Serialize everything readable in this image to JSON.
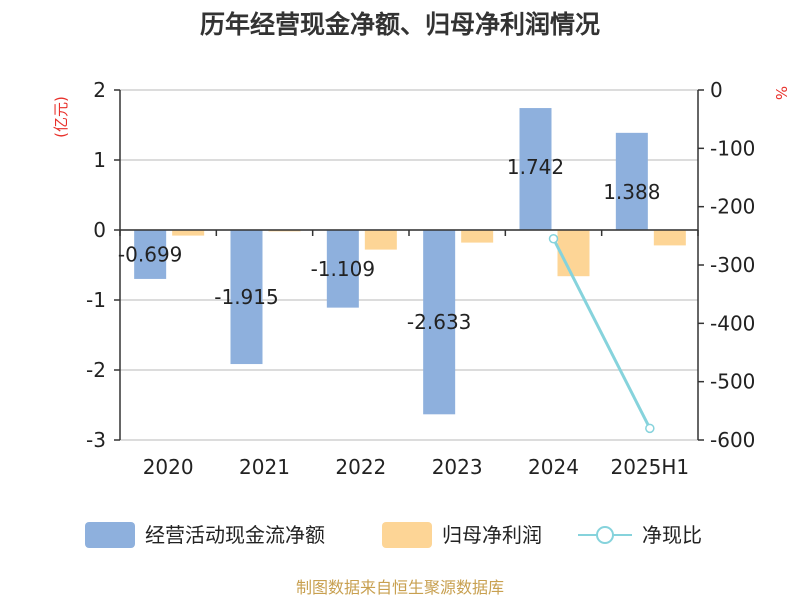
{
  "chart_data": {
    "type": "bar",
    "title": "历年经营现金净额、归母净利润情况",
    "categories": [
      "2020",
      "2021",
      "2022",
      "2023",
      "2024",
      "2025H1"
    ],
    "ylabel_left": "(亿元)",
    "ylabel_right": "%",
    "ylim_left": [
      -3,
      2
    ],
    "ylim_right": [
      -600,
      0
    ],
    "yticks_left": [
      "2",
      "1",
      "0",
      "-1",
      "-2",
      "-3"
    ],
    "yticks_right": [
      "0",
      "-100",
      "-200",
      "-300",
      "-400",
      "-500",
      "-600"
    ],
    "grid": true,
    "legend_position": "bottom",
    "series": [
      {
        "name": "经营活动现金流净额",
        "kind": "bar",
        "axis": "left",
        "color": "#8eb0dd",
        "values": [
          -0.699,
          -1.915,
          -1.109,
          -2.633,
          1.742,
          1.388
        ],
        "labels": [
          "-0.699",
          "-1.915",
          "-1.109",
          "-2.633",
          "1.742",
          "1.388"
        ]
      },
      {
        "name": "归母净利润",
        "kind": "bar",
        "axis": "left",
        "color": "#fdd596",
        "values": [
          -0.08,
          -0.02,
          -0.28,
          -0.18,
          -0.66,
          -0.22
        ]
      },
      {
        "name": "净现比",
        "kind": "line",
        "axis": "right",
        "color": "#86d3dc",
        "values": [
          null,
          null,
          null,
          null,
          -255,
          -580
        ]
      }
    ]
  },
  "source": "制图数据来自恒生聚源数据库"
}
